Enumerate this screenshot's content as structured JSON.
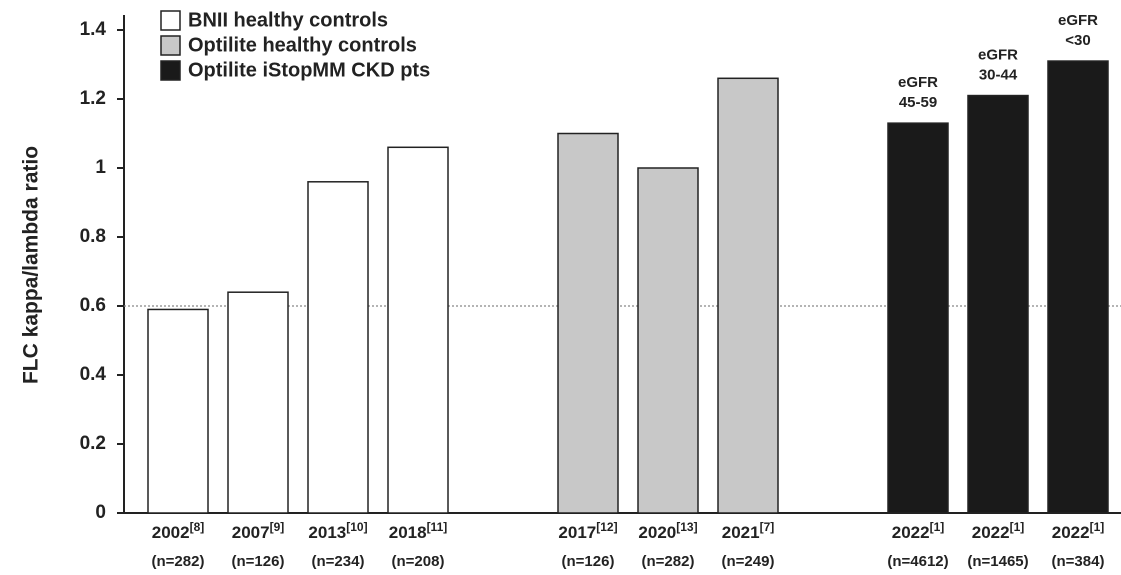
{
  "chart_data": {
    "type": "bar",
    "y_label": "FLC kappa/lambda ratio",
    "categories": [
      {
        "year": "2002",
        "ref": "[8]",
        "n": "(n=282)"
      },
      {
        "year": "2007",
        "ref": "[9]",
        "n": "(n=126)"
      },
      {
        "year": "2013",
        "ref": "[10]",
        "n": "(n=234)"
      },
      {
        "year": "2018",
        "ref": "[11]",
        "n": "(n=208)"
      },
      {
        "year": "2017",
        "ref": "[12]",
        "n": "(n=126)"
      },
      {
        "year": "2020",
        "ref": "[13]",
        "n": "(n=282)"
      },
      {
        "year": "2021",
        "ref": "[7]",
        "n": "(n=249)"
      },
      {
        "year": "2022",
        "ref": "[1]",
        "n": "(n=4612)",
        "annotation": [
          "eGFR",
          "45-59"
        ]
      },
      {
        "year": "2022",
        "ref": "[1]",
        "n": "(n=1465)",
        "annotation": [
          "eGFR",
          "30-44"
        ]
      },
      {
        "year": "2022",
        "ref": "[1]",
        "n": "(n=384)",
        "annotation": [
          "eGFR",
          "<30"
        ]
      }
    ],
    "series": [
      {
        "name": "BNII healthy controls",
        "color": "#ffffff",
        "values": [
          0.59,
          0.64,
          0.96,
          1.06,
          null,
          null,
          null,
          null,
          null,
          null
        ]
      },
      {
        "name": "Optilite healthy controls",
        "color": "#c8c8c8",
        "values": [
          null,
          null,
          null,
          null,
          1.1,
          1.0,
          1.26,
          null,
          null,
          null
        ]
      },
      {
        "name": "Optilite iStopMM CKD pts",
        "color": "#1a1a1a",
        "values": [
          null,
          null,
          null,
          null,
          null,
          null,
          null,
          1.13,
          1.21,
          1.31
        ]
      }
    ],
    "reference_line": 0.6,
    "ylim": [
      0,
      1.4
    ],
    "yticks": [
      0,
      0.2,
      0.4,
      0.6,
      0.8,
      1,
      1.2,
      1.4
    ]
  }
}
